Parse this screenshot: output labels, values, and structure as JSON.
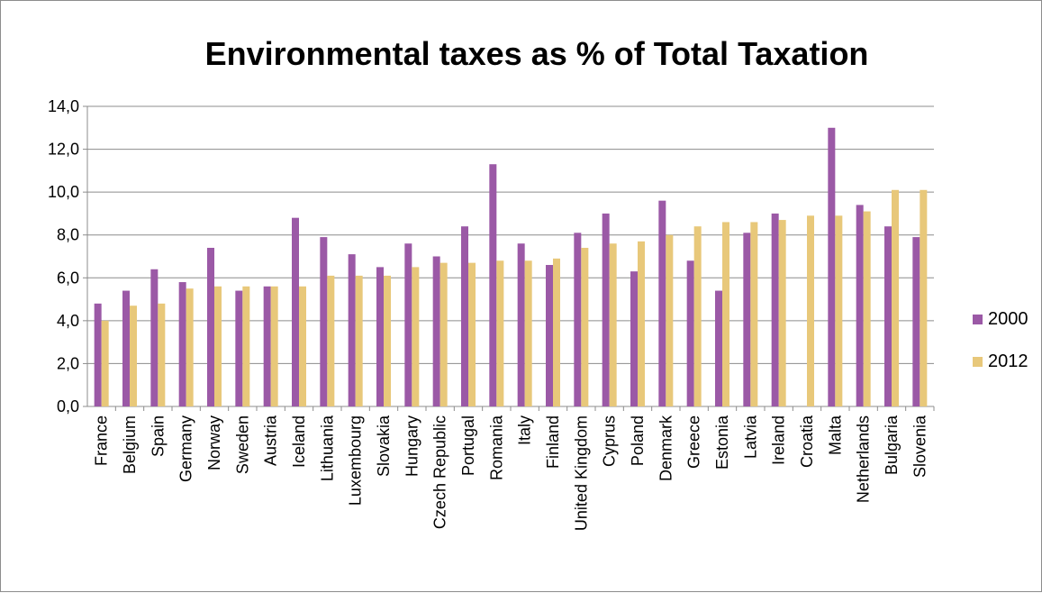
{
  "colors": {
    "s2000": "#9B59A6",
    "s2012": "#E8C87A",
    "grid": "#8c8c8c",
    "axis": "#8c8c8c"
  },
  "chart_data": {
    "type": "bar",
    "title": "Environmental taxes as % of Total Taxation",
    "xlabel": "",
    "ylabel": "",
    "ylim": [
      0,
      14
    ],
    "yticks": [
      "0,0",
      "2,0",
      "4,0",
      "6,0",
      "8,0",
      "10,0",
      "12,0",
      "14,0"
    ],
    "grid": true,
    "legend_position": "right",
    "categories": [
      "France",
      "Belgium",
      "Spain",
      "Germany",
      "Norway",
      "Sweden",
      "Austria",
      "Iceland",
      "Lithuania",
      "Luxembourg",
      "Slovakia",
      "Hungary",
      "Czech Republic",
      "Portugal",
      "Romania",
      "Italy",
      "Finland",
      "United Kingdom",
      "Cyprus",
      "Poland",
      "Denmark",
      "Greece",
      "Estonia",
      "Latvia",
      "Ireland",
      "Croatia",
      "Malta",
      "Netherlands",
      "Bulgaria",
      "Slovenia"
    ],
    "series": [
      {
        "name": "2000",
        "values": [
          4.8,
          5.4,
          6.4,
          5.8,
          7.4,
          5.4,
          5.6,
          8.8,
          7.9,
          7.1,
          6.5,
          7.6,
          7.0,
          8.4,
          11.3,
          7.6,
          6.6,
          8.1,
          9.0,
          6.3,
          9.6,
          6.8,
          5.4,
          8.1,
          9.0,
          null,
          13.0,
          9.4,
          8.4,
          7.9
        ]
      },
      {
        "name": "2012",
        "values": [
          4.0,
          4.7,
          4.8,
          5.5,
          5.6,
          5.6,
          5.6,
          5.6,
          6.1,
          6.1,
          6.1,
          6.5,
          6.7,
          6.7,
          6.8,
          6.8,
          6.9,
          7.4,
          7.6,
          7.7,
          8.0,
          8.4,
          8.6,
          8.6,
          8.7,
          8.9,
          8.9,
          9.1,
          10.1,
          10.1
        ]
      }
    ]
  }
}
